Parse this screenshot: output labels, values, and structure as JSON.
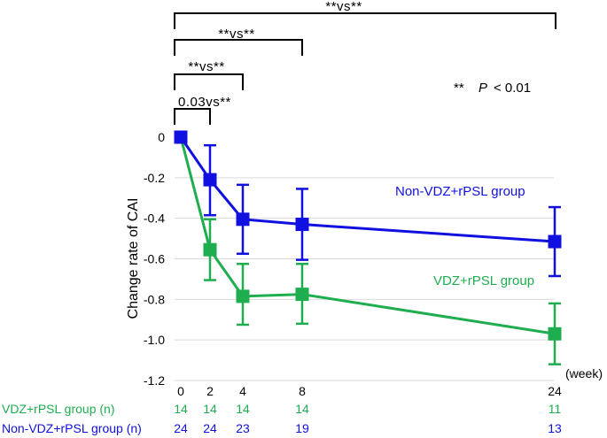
{
  "chart_data": {
    "type": "line",
    "ylabel": "Change rate of CAI",
    "xunit_label": "(week)",
    "x": [
      0,
      2,
      4,
      8,
      24
    ],
    "ylim": [
      -1.2,
      0
    ],
    "yticks": [
      0,
      -0.2,
      -0.4,
      -0.6,
      -0.8,
      -1.0,
      -1.2
    ],
    "ytick_labels": [
      "0",
      "-0.2",
      "-0.4",
      "-0.6",
      "-0.8",
      "-1.0",
      "-1.2"
    ],
    "xtick_labels": [
      "0",
      "2",
      "4",
      "8",
      "24"
    ],
    "grid": true,
    "series": [
      {
        "name": "Non-VDZ+rPSL group",
        "color": "#1010e0",
        "values": [
          0,
          -0.21,
          -0.405,
          -0.43,
          -0.515
        ],
        "err_upper": [
          0,
          -0.04,
          -0.235,
          -0.255,
          -0.345
        ],
        "err_lower": [
          0,
          -0.385,
          -0.575,
          -0.605,
          -0.685
        ]
      },
      {
        "name": "VDZ+rPSL group",
        "color": "#1fae4f",
        "values": [
          0,
          -0.555,
          -0.785,
          -0.775,
          -0.97
        ],
        "err_upper": [
          0,
          -0.405,
          -0.625,
          -0.625,
          -0.82
        ],
        "err_lower": [
          0,
          -0.705,
          -0.925,
          -0.92,
          -1.12
        ]
      }
    ],
    "n_table": [
      {
        "label": "VDZ+rPSL group (n)",
        "color": "#1fae4f",
        "values": [
          "14",
          "14",
          "14",
          "14",
          "11"
        ]
      },
      {
        "label": "Non-VDZ+rPSL group (n)",
        "color": "#1010e0",
        "values": [
          "24",
          "24",
          "23",
          "19",
          "13"
        ]
      }
    ],
    "significance_brackets": [
      {
        "from": 0,
        "to": 24,
        "label": "**vs**"
      },
      {
        "from": 0,
        "to": 8,
        "label": "**vs**"
      },
      {
        "from": 0,
        "to": 4,
        "label": "**vs**"
      },
      {
        "from": 0,
        "to": 2,
        "label": "0.03vs**"
      }
    ],
    "significance_note": {
      "marker": "**",
      "text": "P",
      "threshold": "< 0.01"
    }
  }
}
